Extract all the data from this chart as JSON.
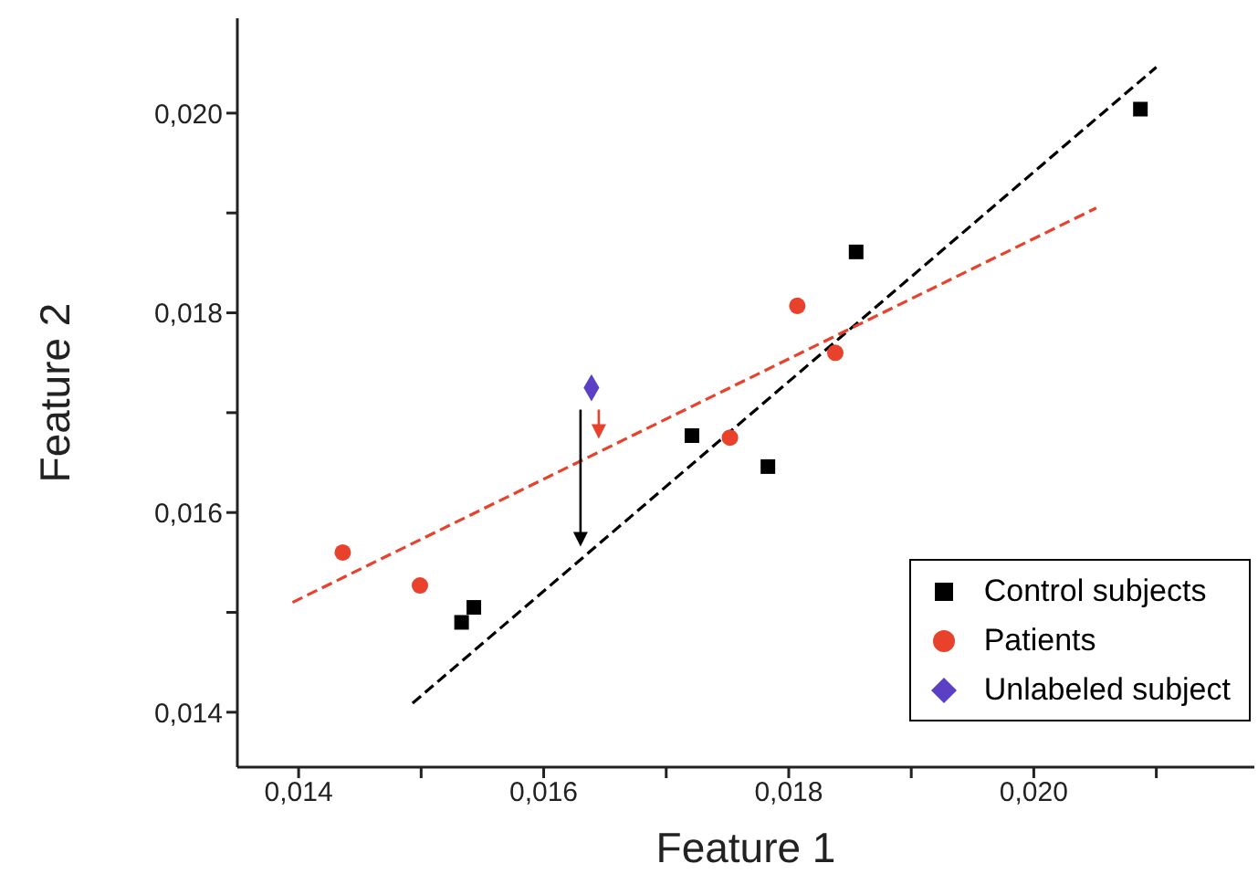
{
  "chart_data": {
    "type": "scatter",
    "xlabel": "Feature 1",
    "ylabel": "Feature 2",
    "xlim": [
      0.0135,
      0.0218
    ],
    "ylim": [
      0.01345,
      0.02095
    ],
    "xticks": [
      {
        "value": 0.014,
        "label": "0,014"
      },
      {
        "value": 0.015,
        "label": null
      },
      {
        "value": 0.016,
        "label": "0,016"
      },
      {
        "value": 0.017,
        "label": null
      },
      {
        "value": 0.018,
        "label": "0,018"
      },
      {
        "value": 0.019,
        "label": null
      },
      {
        "value": 0.02,
        "label": "0,020"
      },
      {
        "value": 0.021,
        "label": null
      }
    ],
    "yticks": [
      {
        "value": 0.014,
        "label": "0,014"
      },
      {
        "value": 0.015,
        "label": null
      },
      {
        "value": 0.016,
        "label": "0,016"
      },
      {
        "value": 0.017,
        "label": null
      },
      {
        "value": 0.018,
        "label": "0,018"
      },
      {
        "value": 0.019,
        "label": null
      },
      {
        "value": 0.02,
        "label": "0,020"
      }
    ],
    "grid": false,
    "legend": "bottom right",
    "series": [
      {
        "name": "Control subjects",
        "marker": "square",
        "color": "#000000",
        "x": [
          0.01533,
          0.01543,
          0.01721,
          0.01783,
          0.01855,
          0.02087
        ],
        "values": [
          0.0149,
          0.01505,
          0.01677,
          0.01646,
          0.01861,
          0.02004
        ]
      },
      {
        "name": "Patients",
        "marker": "circle",
        "color": "#e8412c",
        "x": [
          0.01436,
          0.01499,
          0.01752,
          0.01807,
          0.01838
        ],
        "values": [
          0.0156,
          0.01527,
          0.01675,
          0.01807,
          0.0176
        ]
      },
      {
        "name": "Unlabeled subject",
        "marker": "diamond",
        "color": "#5b3fc4",
        "x": [
          0.01639
        ],
        "values": [
          0.01725
        ]
      },
      {
        "type": "line",
        "line_style": "dashed",
        "marker": "none",
        "color": "#000000",
        "x": [
          0.01493,
          0.021
        ],
        "values": [
          0.01409,
          0.02046
        ]
      },
      {
        "type": "line",
        "line_style": "dashed",
        "marker": "none",
        "color": "#e8412c",
        "x": [
          0.01395,
          0.02051
        ],
        "values": [
          0.0151,
          0.01905
        ]
      }
    ]
  }
}
